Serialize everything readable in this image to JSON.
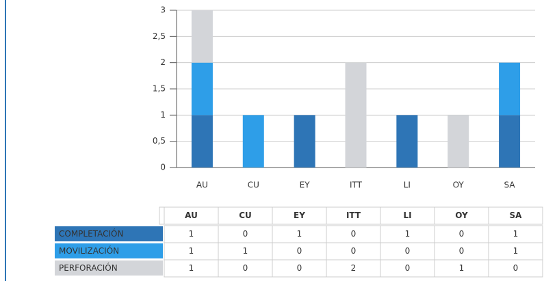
{
  "chart_data": {
    "type": "stacked-bar",
    "categories": [
      "AU",
      "CU",
      "EY",
      "ITT",
      "LI",
      "OY",
      "SA"
    ],
    "series": [
      {
        "name": "COMPLETACIÓN",
        "color": "#2e75b6",
        "values": [
          1,
          0,
          1,
          0,
          1,
          0,
          1
        ]
      },
      {
        "name": "MOVILIZACIÓN",
        "color": "#2e9ee8",
        "values": [
          1,
          1,
          0,
          0,
          0,
          0,
          1
        ]
      },
      {
        "name": "PERFORACIÓN",
        "color": "#d3d5d9",
        "values": [
          1,
          0,
          0,
          2,
          0,
          1,
          0
        ]
      }
    ],
    "ylim": [
      0,
      3
    ],
    "yticks": [
      0,
      {
        "value": 0.5,
        "label": "0,5"
      },
      1,
      {
        "value": 1.5,
        "label": "1,5"
      },
      2,
      {
        "value": 2.5,
        "label": "2,5"
      },
      3
    ],
    "grid": true
  }
}
